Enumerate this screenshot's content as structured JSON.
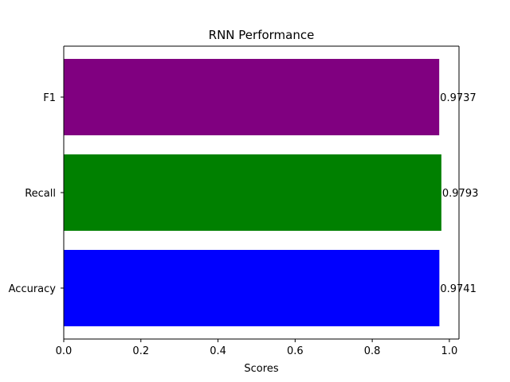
{
  "chart_data": {
    "type": "bar",
    "orientation": "horizontal",
    "title": "RNN Performance",
    "xlabel": "Scores",
    "ylabel": "",
    "xlim": [
      0,
      1.025
    ],
    "xticks": [
      "0.0",
      "0.2",
      "0.4",
      "0.6",
      "0.8",
      "1.0"
    ],
    "categories": [
      "Accuracy",
      "Recall",
      "F1"
    ],
    "values": [
      0.9741,
      0.9793,
      0.9737
    ],
    "value_labels": [
      "0.9741",
      "0.9793",
      "0.9737"
    ],
    "colors": [
      "#0000ff",
      "#008000",
      "#800080"
    ],
    "grid": false,
    "legend": "none"
  }
}
